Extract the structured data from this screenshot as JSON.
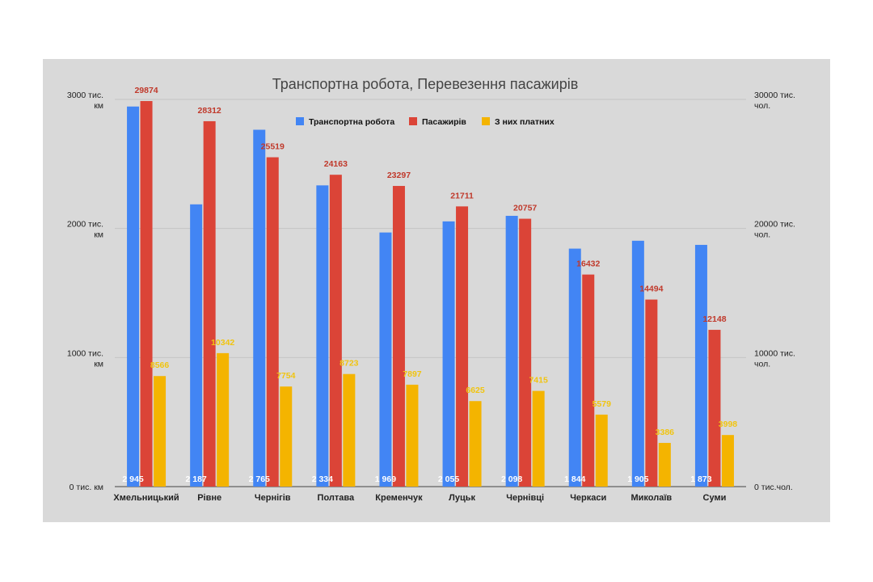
{
  "chart_data": {
    "type": "bar",
    "title": "Транспортна робота, Перевезення пасажирів",
    "categories": [
      "Хмельницький",
      "Рівне",
      "Чернігів",
      "Полтава",
      "Кременчук",
      "Луцьк",
      "Чернівці",
      "Черкаси",
      "Миколаїв",
      "Суми"
    ],
    "series": [
      {
        "name": "Транспортна робота",
        "axis": "left",
        "color": "#4285f4",
        "values": [
          2945,
          2187,
          2765,
          2334,
          1969,
          2055,
          2098,
          1844,
          1905,
          1873
        ],
        "labels": [
          "2 945",
          "2 187",
          "2 765",
          "2 334",
          "1 969",
          "2 055",
          "2 098",
          "1 844",
          "1 905",
          "1 873"
        ]
      },
      {
        "name": "Пасажирів",
        "axis": "right",
        "color": "#db4437",
        "label_color": "#c0392b",
        "values": [
          29874,
          28312,
          25519,
          24163,
          23297,
          21711,
          20757,
          16432,
          14494,
          12148
        ],
        "labels": [
          "29874",
          "28312",
          "25519",
          "24163",
          "23297",
          "21711",
          "20757",
          "16432",
          "14494",
          "12148"
        ]
      },
      {
        "name": "З них платних",
        "axis": "right",
        "color": "#f4b400",
        "label_color": "#f1c40f",
        "values": [
          8566,
          10342,
          7754,
          8723,
          7897,
          6625,
          7415,
          5579,
          3386,
          3998
        ],
        "labels": [
          "8566",
          "10342",
          "7754",
          "8723",
          "7897",
          "6625",
          "7415",
          "5579",
          "3386",
          "3998"
        ]
      }
    ],
    "y_left": {
      "ylim": [
        0,
        3000
      ],
      "ticks": [
        0,
        1000,
        2000,
        3000
      ],
      "tick_labels": [
        [
          "0 тис. км"
        ],
        [
          "1000 тис.",
          "км"
        ],
        [
          "2000 тис.",
          "км"
        ],
        [
          "3000 тис.",
          "км"
        ]
      ]
    },
    "y_right": {
      "ylim": [
        0,
        30000
      ],
      "ticks": [
        0,
        10000,
        20000,
        30000
      ],
      "tick_labels": [
        [
          "0 тис.чол."
        ],
        [
          "10000 тис.",
          "чол."
        ],
        [
          "20000 тис.",
          "чол."
        ],
        [
          "30000 тис.",
          "чол."
        ]
      ]
    },
    "legend": "top",
    "grid": true
  }
}
